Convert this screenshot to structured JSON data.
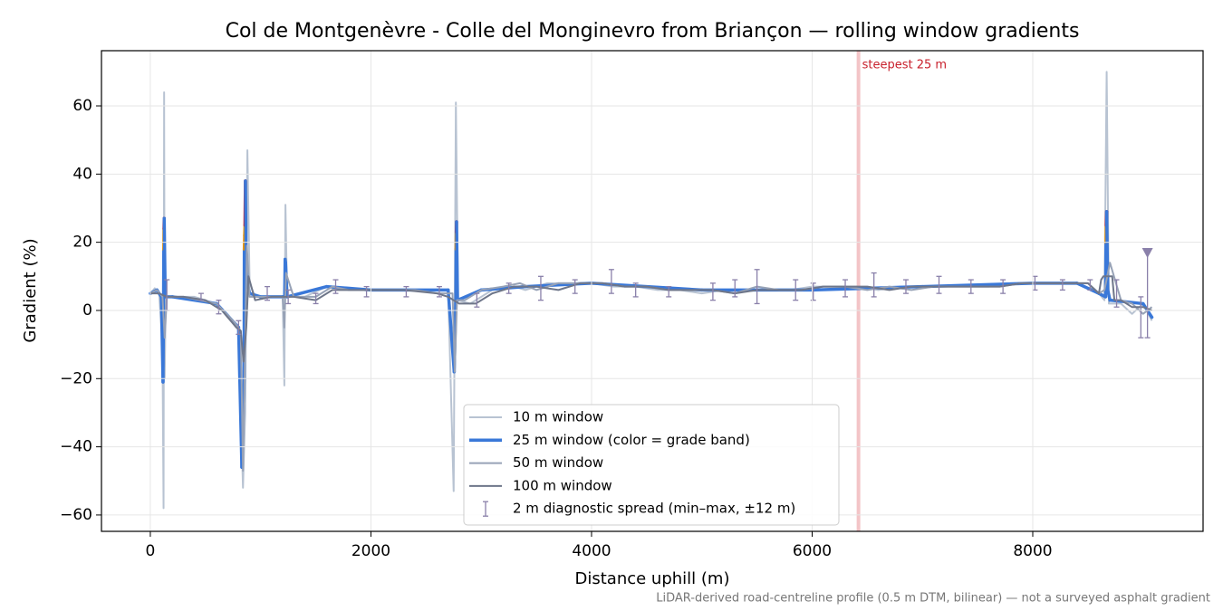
{
  "chart_data": {
    "type": "line",
    "title": "Col de Montgenèvre - Colle del Monginevro from Briançon — rolling window gradients",
    "x_label": "Distance uphill (m)",
    "y_label": "Gradient (%)",
    "footnote": "LiDAR-derived road-centreline profile (0.5 m DTM, bilinear) — not a surveyed asphalt gradient",
    "xlim": [
      -443,
      9544
    ],
    "ylim": [
      -64.8,
      76.2
    ],
    "xticks": [
      0,
      2000,
      4000,
      6000,
      8000
    ],
    "yticks": [
      {
        "value": -60,
        "label": "−60"
      },
      {
        "value": -40,
        "label": "−40"
      },
      {
        "value": -20,
        "label": "−20"
      },
      0,
      20,
      40,
      60
    ],
    "grid": true,
    "legend": "lower center",
    "annotation": {
      "text": "steepest 25 m",
      "x": 6420,
      "color": "#e88a90"
    },
    "series": [
      {
        "name": "10 m window",
        "color": "#b8c3d2",
        "width": 2,
        "x": [
          0,
          40,
          80,
          110,
          120,
          125,
          130,
          140,
          200,
          400,
          600,
          700,
          800,
          840,
          860,
          880,
          900,
          950,
          1200,
          1215,
          1225,
          1240,
          1400,
          1600,
          1800,
          2000,
          2400,
          2700,
          2750,
          2770,
          2790,
          2900,
          3100,
          3300,
          3400,
          3600,
          3800,
          4000,
          4200,
          4400,
          4600,
          4800,
          5000,
          5200,
          5400,
          5600,
          5800,
          6000,
          6200,
          6400,
          6600,
          6800,
          7000,
          7200,
          7400,
          7600,
          7800,
          8000,
          8200,
          8400,
          8600,
          8650,
          8670,
          8690,
          8800,
          8900,
          9000,
          9080
        ],
        "values": [
          5,
          6.5,
          5,
          -10,
          -58,
          64,
          -20,
          4,
          4,
          4,
          2,
          -2,
          -5,
          -52,
          -30,
          47,
          8,
          4,
          4,
          -22,
          31,
          4,
          4,
          7,
          6,
          6,
          6,
          6,
          -53,
          61,
          3,
          2,
          6,
          7,
          6,
          8,
          8,
          8,
          7,
          7,
          6,
          6,
          5,
          6,
          6,
          6,
          6,
          7,
          7,
          7,
          6,
          7,
          7,
          7,
          7,
          7,
          8,
          8,
          8,
          8,
          5,
          3,
          70,
          2,
          2,
          -1,
          2,
          -3
        ]
      },
      {
        "name": "25 m window (color = grade band)",
        "color": "#3a78d8",
        "width": 3.5,
        "x": [
          0,
          60,
          100,
          115,
          120,
          122,
          124,
          126,
          135,
          200,
          600,
          800,
          830,
          850,
          852,
          855,
          858,
          862,
          870,
          880,
          900,
          1000,
          1200,
          1218,
          1222,
          1226,
          1240,
          1600,
          2000,
          2700,
          2755,
          2770,
          2772,
          2774,
          2776,
          2785,
          3000,
          3400,
          4000,
          5000,
          6000,
          7000,
          8000,
          8400,
          8600,
          8660,
          8664,
          8667,
          8670,
          8680,
          8700,
          9000,
          9080
        ],
        "values": [
          5,
          6,
          4,
          -21,
          4,
          18,
          24,
          27,
          4,
          4,
          2,
          -5,
          -46,
          -20,
          18,
          22,
          25,
          38,
          10,
          8,
          5,
          4,
          4,
          4,
          15,
          14,
          4,
          7,
          6,
          6,
          -18,
          4,
          18,
          23,
          26,
          3,
          6,
          7,
          8,
          6,
          6,
          7,
          8,
          8,
          5,
          4,
          20,
          25,
          29,
          6,
          3,
          2,
          -2
        ],
        "colors": [
          "#3a78d8",
          "#3a78d8",
          "#3a78d8",
          "#3a78d8",
          "#3a78d8",
          "#3a78d8",
          "#e8950c",
          "#c8202c",
          "#3a78d8",
          "#3a78d8",
          "#3a78d8",
          "#3a78d8",
          "#3a78d8",
          "#3a78d8",
          "#3a78d8",
          "#e8950c",
          "#e8950c",
          "#c8202c",
          "#3a78d8",
          "#3a78d8",
          "#3a78d8",
          "#3a78d8",
          "#3a78d8",
          "#3a78d8",
          "#3a78d8",
          "#3a78d8",
          "#3a78d8",
          "#3a78d8",
          "#3a78d8",
          "#3a78d8",
          "#3a78d8",
          "#3a78d8",
          "#3a78d8",
          "#e8950c",
          "#c8202c",
          "#3a78d8",
          "#3a78d8",
          "#3a78d8",
          "#3a78d8",
          "#3a78d8",
          "#3a78d8",
          "#3a78d8",
          "#3a78d8",
          "#3a78d8",
          "#3a78d8",
          "#3a78d8",
          "#3a78d8",
          "#e8950c",
          "#c8202c",
          "#3a78d8",
          "#3a78d8",
          "#3a78d8",
          "#3a78d8"
        ]
      },
      {
        "name": "50 m window",
        "color": "#97a2b6",
        "width": 2,
        "x": [
          0,
          60,
          110,
          130,
          150,
          300,
          600,
          750,
          820,
          840,
          860,
          875,
          900,
          1000,
          1200,
          1215,
          1230,
          1300,
          1500,
          1650,
          1800,
          2000,
          2200,
          2400,
          2600,
          2740,
          2760,
          2780,
          2850,
          3000,
          3200,
          3350,
          3500,
          3700,
          3900,
          4100,
          4300,
          4500,
          4700,
          4900,
          5100,
          5300,
          5500,
          5700,
          5900,
          6100,
          6300,
          6500,
          6700,
          6900,
          7100,
          7300,
          7500,
          7700,
          7900,
          8100,
          8300,
          8500,
          8600,
          8650,
          8700,
          8800,
          8900,
          9000,
          9080
        ],
        "values": [
          5,
          6,
          4,
          -8,
          4,
          4,
          2,
          -3,
          -6,
          -47,
          -10,
          19,
          4,
          4,
          4,
          -5,
          11,
          4,
          4,
          7,
          6,
          6,
          6,
          6,
          5,
          5,
          -18,
          3,
          3,
          6,
          7,
          8,
          6,
          8,
          8,
          8,
          7,
          7,
          6,
          6,
          6,
          5,
          7,
          6,
          6,
          7,
          7,
          6,
          7,
          6,
          7,
          7,
          7,
          7,
          8,
          8,
          8,
          8,
          5,
          6,
          14,
          3,
          2,
          -1,
          1
        ]
      },
      {
        "name": "100 m window",
        "color": "#6e7689",
        "width": 2,
        "x": [
          0,
          80,
          150,
          300,
          500,
          650,
          780,
          820,
          845,
          870,
          890,
          950,
          1100,
          1300,
          1500,
          1650,
          1800,
          2000,
          2300,
          2600,
          2700,
          2800,
          2950,
          3100,
          3300,
          3500,
          3700,
          3900,
          4100,
          4300,
          4500,
          4700,
          4900,
          5100,
          5300,
          5500,
          5700,
          5900,
          6100,
          6300,
          6500,
          6700,
          6900,
          7100,
          7300,
          7500,
          7700,
          7900,
          8100,
          8300,
          8500,
          8600,
          8620,
          8640,
          8720,
          8740,
          8800,
          8900,
          9000,
          9080
        ],
        "values": [
          5,
          5,
          4,
          4,
          3,
          0,
          -5,
          -6,
          -15,
          -5,
          10,
          3,
          4,
          4,
          3,
          6,
          6,
          6,
          6,
          5,
          4,
          2,
          2,
          5,
          7,
          7,
          6,
          8,
          8,
          7,
          7,
          6,
          6,
          6,
          5,
          6,
          6,
          6,
          7,
          7,
          7,
          6,
          7,
          7,
          7,
          7,
          7,
          8,
          8,
          8,
          8,
          5,
          9,
          10,
          10,
          3,
          3,
          1,
          1,
          0
        ]
      }
    ],
    "errorbars": {
      "name": "2 m diagnostic spread (min–max, ±12 m)",
      "color": "#8a80aa",
      "x": [
        150,
        460,
        620,
        800,
        1060,
        1250,
        1500,
        1680,
        1960,
        2320,
        2620,
        2960,
        3250,
        3540,
        3850,
        4180,
        4400,
        4700,
        5100,
        5300,
        5500,
        5850,
        6010,
        6300,
        6560,
        6850,
        7150,
        7440,
        7730,
        8020,
        8270,
        8520,
        8760,
        8980,
        9040
      ],
      "low": [
        0,
        3,
        -1,
        -7,
        3,
        2,
        2,
        5,
        4,
        4,
        4,
        1,
        5,
        3,
        5,
        5,
        4,
        4,
        3,
        4,
        2,
        3,
        3,
        4,
        4,
        5,
        5,
        5,
        5,
        6,
        6,
        6,
        1,
        -8,
        -8
      ],
      "high": [
        9,
        5,
        3,
        -3,
        7,
        6,
        5,
        9,
        7,
        7,
        7,
        5,
        8,
        10,
        9,
        12,
        8,
        7,
        8,
        9,
        12,
        9,
        8,
        9,
        11,
        9,
        10,
        9,
        9,
        10,
        9,
        9,
        9,
        4,
        17
      ]
    },
    "summit_marker": {
      "x": 9040,
      "y": 17
    }
  }
}
